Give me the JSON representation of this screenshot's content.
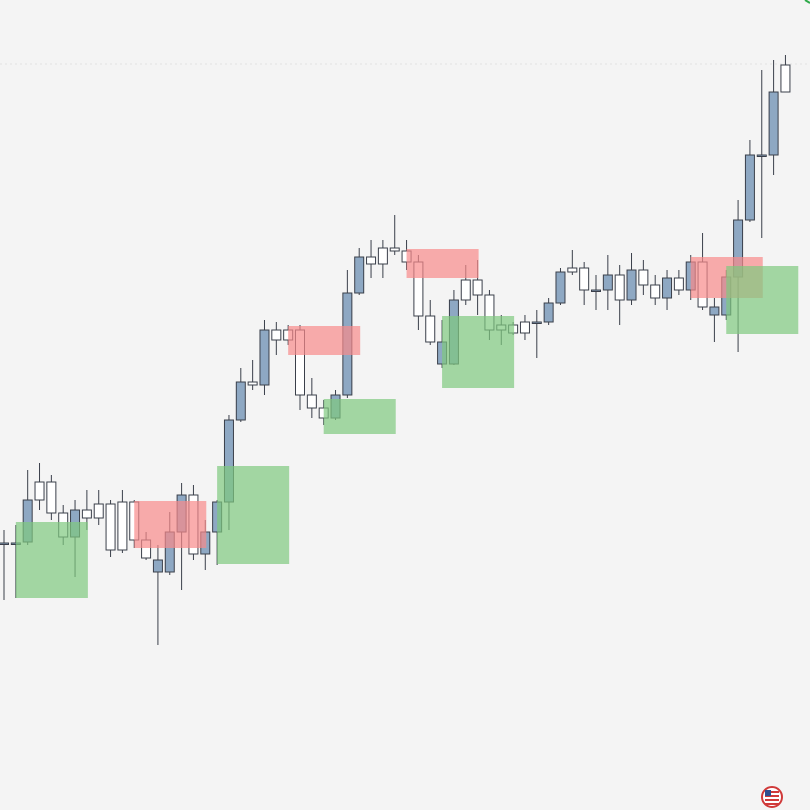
{
  "chart_data": {
    "type": "candlestick",
    "open": [
      267,
      267,
      268,
      328,
      328,
      297,
      273,
      300,
      306,
      306,
      308,
      308,
      270,
      238,
      238,
      278,
      315,
      256,
      278,
      308,
      390,
      428,
      425,
      480,
      480,
      480,
      415,
      402,
      392,
      415,
      517,
      553,
      562,
      562,
      559,
      548,
      494,
      446,
      446,
      530,
      530,
      515,
      485,
      485,
      488,
      488,
      488,
      507,
      542,
      542,
      520,
      520,
      535,
      510,
      540,
      525,
      512,
      532,
      520,
      548,
      495,
      495,
      533,
      590,
      655,
      655,
      745
    ],
    "high": [
      280,
      285,
      340,
      347,
      335,
      305,
      310,
      320,
      320,
      310,
      320,
      310,
      278,
      265,
      298,
      327,
      325,
      290,
      310,
      395,
      442,
      450,
      490,
      488,
      485,
      485,
      432,
      410,
      420,
      540,
      562,
      570,
      570,
      595,
      570,
      555,
      510,
      490,
      520,
      545,
      550,
      520,
      495,
      488,
      495,
      500,
      512,
      542,
      560,
      548,
      535,
      555,
      545,
      557,
      550,
      535,
      540,
      540,
      555,
      577,
      512,
      540,
      610,
      670,
      740,
      750,
      755
    ],
    "low": [
      210,
      212,
      265,
      300,
      290,
      265,
      233,
      280,
      285,
      253,
      257,
      262,
      250,
      165,
      235,
      220,
      250,
      240,
      245,
      280,
      388,
      420,
      415,
      455,
      465,
      400,
      392,
      385,
      390,
      412,
      515,
      532,
      532,
      555,
      540,
      480,
      465,
      442,
      445,
      505,
      495,
      470,
      465,
      475,
      470,
      452,
      485,
      505,
      535,
      505,
      500,
      500,
      485,
      505,
      515,
      505,
      500,
      515,
      510,
      500,
      468,
      490,
      458,
      588,
      572,
      635,
      718
    ],
    "close": [
      267,
      267,
      310,
      310,
      297,
      273,
      300,
      292,
      292,
      260,
      260,
      270,
      252,
      250,
      278,
      315,
      256,
      278,
      308,
      390,
      428,
      425,
      480,
      470,
      470,
      415,
      402,
      392,
      415,
      517,
      553,
      546,
      546,
      559,
      548,
      494,
      468,
      468,
      510,
      510,
      515,
      480,
      480,
      477,
      477,
      488,
      507,
      538,
      538,
      520,
      520,
      535,
      510,
      540,
      525,
      512,
      532,
      520,
      548,
      503,
      503,
      533,
      590,
      655,
      655,
      718,
      718
    ],
    "up_color": "#8ea8c3",
    "down_color": "#ffffff",
    "zones": [
      {
        "start": 1,
        "high": 288,
        "low": 212,
        "color": "#7fc97f"
      },
      {
        "start": 11,
        "high": 309,
        "low": 262,
        "color": "#f88a8a"
      },
      {
        "start": 18,
        "high": 344,
        "low": 246,
        "color": "#7fc97f"
      },
      {
        "start": 24,
        "high": 484,
        "low": 455,
        "color": "#f88a8a"
      },
      {
        "start": 27,
        "high": 411,
        "low": 376,
        "color": "#7fc97f"
      },
      {
        "start": 34,
        "high": 561,
        "low": 532,
        "color": "#f88a8a"
      },
      {
        "start": 37,
        "high": 494,
        "low": 422,
        "color": "#7fc97f"
      },
      {
        "start": 58,
        "high": 553,
        "low": 512,
        "color": "#f88a8a"
      },
      {
        "start": 61,
        "high": 544,
        "low": 476,
        "color": "#7fc97f"
      }
    ],
    "ylim": [
      0,
      810
    ]
  }
}
